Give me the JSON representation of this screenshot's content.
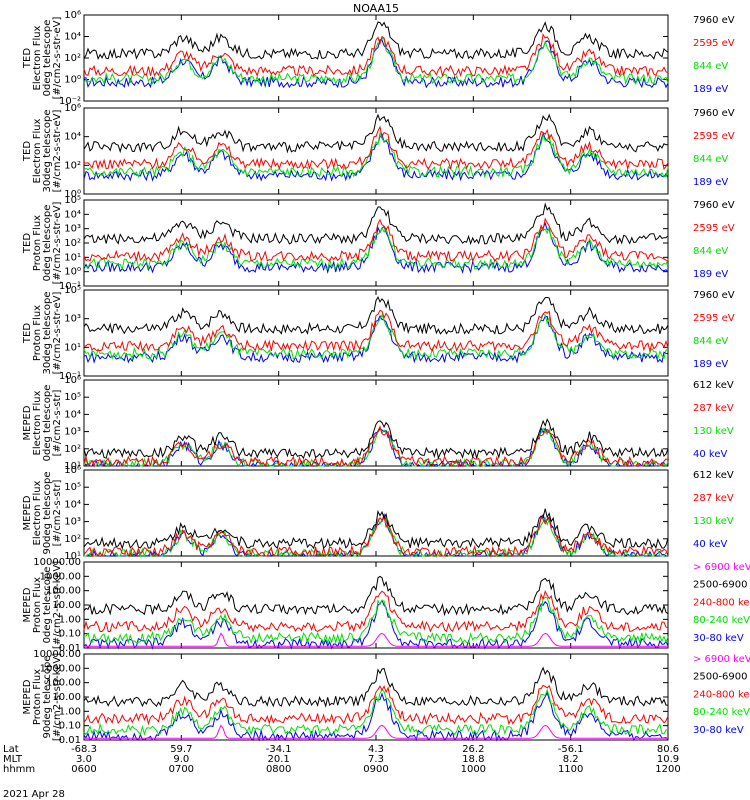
{
  "title": "NOAA15",
  "date_label": "2021 Apr 28",
  "bottom_axis": {
    "rows": [
      {
        "label": "Lat",
        "values": [
          "-68.3",
          "59.7",
          "-34.1",
          "4.3",
          "26.2",
          "-56.1",
          "80.6"
        ]
      },
      {
        "label": "MLT",
        "values": [
          "3.0",
          "9.0",
          "20.1",
          "7.3",
          "18.8",
          "8.2",
          "10.9"
        ]
      },
      {
        "label": "hhmm",
        "values": [
          "0600",
          "0700",
          "0800",
          "0900",
          "1000",
          "1100",
          "1200"
        ]
      }
    ]
  },
  "series_colors": {
    "black": "#000000",
    "red": "#ff0000",
    "green": "#00e000",
    "blue": "#0000ff",
    "magenta": "#ff00ff"
  },
  "chart_data": [
    {
      "type": "line",
      "ylabel": [
        "TED",
        "Electron Flux",
        "0deg telescope",
        "[#/cm2-s-str-eV]"
      ],
      "ylim": [
        0.01,
        1000000
      ],
      "log": true,
      "yticks": [
        "10⁻²",
        "10⁰",
        "10²",
        "10⁴",
        "10⁶"
      ],
      "legend": [
        {
          "name": "7960 eV",
          "color": "black"
        },
        {
          "name": "2595 eV",
          "color": "red"
        },
        {
          "name": "844 eV",
          "color": "green"
        },
        {
          "name": "189 eV",
          "color": "blue"
        }
      ],
      "x": [
        "0600",
        "0700",
        "0800",
        "0900",
        "1000",
        "1100",
        "1200"
      ]
    },
    {
      "type": "line",
      "ylabel": [
        "TED",
        "Electron Flux",
        "30deg telescope",
        "[#/cm2-s-str-eV]"
      ],
      "ylim": [
        0.01,
        1000000
      ],
      "log": true,
      "yticks": [
        "10⁰",
        "10²",
        "10⁴",
        "10⁶"
      ],
      "legend": [
        {
          "name": "7960 eV",
          "color": "black"
        },
        {
          "name": "2595 eV",
          "color": "red"
        },
        {
          "name": "844 eV",
          "color": "green"
        },
        {
          "name": "189 eV",
          "color": "blue"
        }
      ]
    },
    {
      "type": "line",
      "ylabel": [
        "TED",
        "Proton Flux",
        "0deg telescope",
        "[#/cm2-s-str-eV]"
      ],
      "ylim": [
        0.1,
        100000
      ],
      "log": true,
      "yticks": [
        "10⁻¹",
        "10⁰",
        "10¹",
        "10²",
        "10³",
        "10⁴",
        "10⁵"
      ],
      "legend": [
        {
          "name": "7960 eV",
          "color": "black"
        },
        {
          "name": "2595 eV",
          "color": "red"
        },
        {
          "name": "844 eV",
          "color": "green"
        },
        {
          "name": "189 eV",
          "color": "blue"
        }
      ]
    },
    {
      "type": "line",
      "ylabel": [
        "TED",
        "Proton Flux",
        "30deg telescope",
        "[#/cm2-s-str-eV]"
      ],
      "ylim": [
        0.1,
        100000
      ],
      "log": true,
      "yticks": [
        "10⁻¹",
        "10¹",
        "10³",
        "10⁵"
      ],
      "legend": [
        {
          "name": "7960 eV",
          "color": "black"
        },
        {
          "name": "2595 eV",
          "color": "red"
        },
        {
          "name": "844 eV",
          "color": "green"
        },
        {
          "name": "189 eV",
          "color": "blue"
        }
      ]
    },
    {
      "type": "line",
      "ylabel": [
        "MEPED",
        "Electron Flux",
        "0deg telescope",
        "[#/cm2-s-str]"
      ],
      "ylim": [
        10,
        1000000
      ],
      "log": true,
      "yticks": [
        "10¹",
        "10²",
        "10³",
        "10⁴",
        "10⁵",
        "10⁶"
      ],
      "legend": [
        {
          "name": "612 keV",
          "color": "black"
        },
        {
          "name": "287 keV",
          "color": "red"
        },
        {
          "name": "130 keV",
          "color": "green"
        },
        {
          "name": "40 keV",
          "color": "blue"
        }
      ]
    },
    {
      "type": "line",
      "ylabel": [
        "MEPED",
        "Electron Flux",
        "90deg telescope",
        "[#/cm2-s-str]"
      ],
      "ylim": [
        10,
        1000000
      ],
      "log": true,
      "yticks": [
        "10¹",
        "10²",
        "10³",
        "10⁴",
        "10⁵",
        "10⁶"
      ],
      "legend": [
        {
          "name": "612 keV",
          "color": "black"
        },
        {
          "name": "287 keV",
          "color": "red"
        },
        {
          "name": "130 keV",
          "color": "green"
        },
        {
          "name": "40 keV",
          "color": "blue"
        }
      ]
    },
    {
      "type": "line",
      "ylabel": [
        "MEPED",
        "Proton Flux",
        "0deg telescope",
        "[#/cm2-s-str-keV]"
      ],
      "ylim": [
        0.01,
        10000
      ],
      "log": true,
      "yticks": [
        "0.01",
        "0.10",
        "1.00",
        "10.00",
        "100.00",
        "1000.00",
        "10000.00"
      ],
      "legend": [
        {
          "name": "> 6900 keV",
          "color": "magenta"
        },
        {
          "name": "2500-6900",
          "color": "black"
        },
        {
          "name": "240-800 ke",
          "color": "red"
        },
        {
          "name": "80-240 keV",
          "color": "green"
        },
        {
          "name": "30-80 keV",
          "color": "blue"
        }
      ]
    },
    {
      "type": "line",
      "ylabel": [
        "MEPED",
        "Proton Flux",
        "90deg telescope",
        "[#/cm2-s-str-keV]"
      ],
      "ylim": [
        0.01,
        10000
      ],
      "log": true,
      "yticks": [
        "0.01",
        "0.10",
        "1.00",
        "10.00",
        "100.00",
        "1000.00",
        "10000.00"
      ],
      "legend": [
        {
          "name": "> 6900 keV",
          "color": "magenta"
        },
        {
          "name": "2500-6900",
          "color": "black"
        },
        {
          "name": "240-800 ke",
          "color": "red"
        },
        {
          "name": "80-240 keV",
          "color": "green"
        },
        {
          "name": "30-80 keV",
          "color": "blue"
        }
      ]
    }
  ]
}
